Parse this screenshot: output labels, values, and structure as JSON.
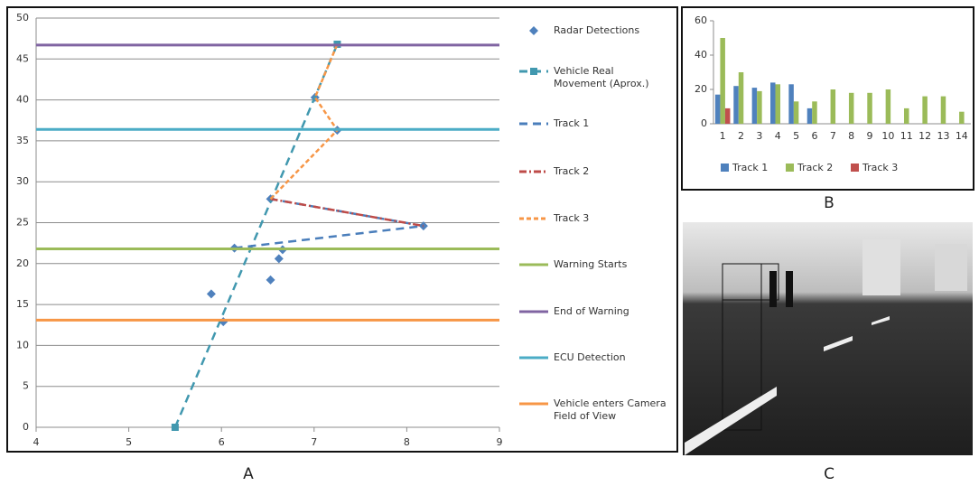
{
  "captions": [
    "A",
    "B",
    "C"
  ],
  "chart_data": [
    {
      "type": "line",
      "xlim": [
        4,
        9
      ],
      "xticks": [
        4,
        5,
        6,
        7,
        8,
        9
      ],
      "ylim": [
        0,
        50
      ],
      "yticks": [
        0,
        5,
        10,
        15,
        20,
        25,
        30,
        35,
        40,
        45,
        50
      ],
      "grid": true,
      "series": [
        {
          "name": "Radar Detections",
          "color": "#4f81bd",
          "style": "markers",
          "marker": "diamond",
          "x": [
            5.89,
            6.02,
            6.53,
            6.62,
            6.66,
            6.14,
            6.53,
            7.01,
            7.25,
            8.18
          ],
          "values": [
            16.3,
            12.9,
            18.0,
            20.6,
            21.7,
            21.9,
            27.9,
            40.3,
            36.3,
            24.6
          ]
        },
        {
          "name": "Vehicle Real Movement (Aprox.)",
          "color": "#4198af",
          "style": "dashed",
          "marker": "square",
          "x": [
            5.5,
            7.25
          ],
          "values": [
            0,
            46.8
          ]
        },
        {
          "name": "Track 1",
          "color": "#4a7ebb",
          "style": "dashed",
          "x": [
            6.14,
            8.18,
            6.53
          ],
          "values": [
            21.9,
            24.6,
            27.9
          ]
        },
        {
          "name": "Track 2",
          "color": "#be4b48",
          "style": "dash-dot",
          "x": [
            6.53,
            8.18
          ],
          "values": [
            27.9,
            24.6
          ]
        },
        {
          "name": "Track 3",
          "color": "#f79646",
          "style": "short-dashed",
          "x": [
            6.53,
            7.25,
            7.01,
            7.25
          ],
          "values": [
            27.9,
            36.3,
            40.3,
            46.8
          ]
        },
        {
          "name": "Warning Starts",
          "color": "#9bbb59",
          "style": "solid",
          "x": [
            4,
            9
          ],
          "values": [
            21.8,
            21.8
          ]
        },
        {
          "name": "End of Warning",
          "color": "#8064a2",
          "style": "solid",
          "x": [
            4,
            9
          ],
          "values": [
            46.7,
            46.7
          ]
        },
        {
          "name": "ECU Detection",
          "color": "#4bacc6",
          "style": "solid",
          "x": [
            4,
            9
          ],
          "values": [
            36.4,
            36.4
          ]
        },
        {
          "name": "Vehicle enters Camera Field of View",
          "color": "#f79646",
          "style": "solid",
          "x": [
            4,
            9
          ],
          "values": [
            13.1,
            13.1
          ]
        }
      ]
    },
    {
      "type": "bar",
      "categories": [
        "1",
        "2",
        "3",
        "4",
        "5",
        "6",
        "7",
        "8",
        "9",
        "10",
        "11",
        "12",
        "13",
        "14"
      ],
      "ylim": [
        0,
        60
      ],
      "yticks": [
        0,
        20,
        40,
        60
      ],
      "legend": "bottom",
      "series": [
        {
          "name": "Track 1",
          "color": "#4f81bd",
          "values": [
            17,
            22,
            21,
            24,
            23,
            9,
            null,
            null,
            null,
            null,
            null,
            null,
            null,
            null
          ]
        },
        {
          "name": "Track 2",
          "color": "#9bbb59",
          "values": [
            50,
            30,
            19,
            23,
            13,
            13,
            20,
            18,
            18,
            20,
            9,
            16,
            16,
            7
          ]
        },
        {
          "name": "Track 3",
          "color": "#c0504d",
          "values": [
            9,
            null,
            null,
            null,
            null,
            null,
            null,
            null,
            null,
            null,
            null,
            null,
            null,
            null
          ]
        }
      ]
    }
  ]
}
